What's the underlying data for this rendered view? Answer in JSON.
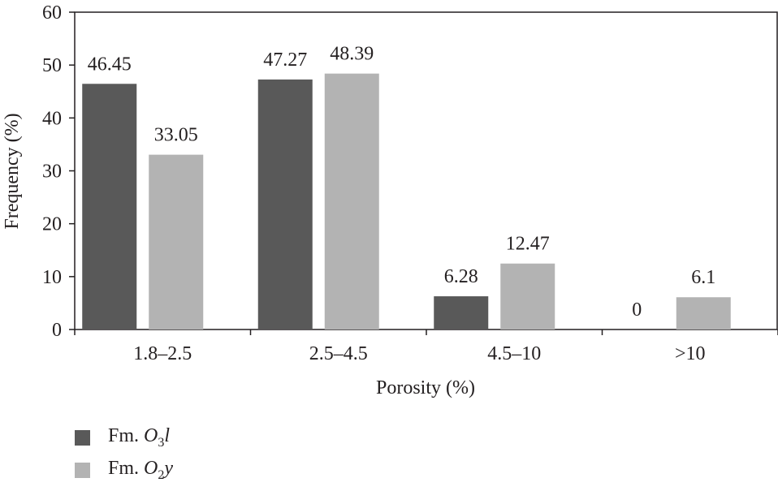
{
  "chart_data": {
    "type": "bar",
    "categories": [
      "1.8–2.5",
      "2.5–4.5",
      "4.5–10",
      ">10"
    ],
    "series": [
      {
        "name": "Fm. O3l",
        "values": [
          46.45,
          47.27,
          6.28,
          0
        ],
        "value_labels": [
          "46.45",
          "47.27",
          "6.28",
          "0"
        ],
        "color": "#595959"
      },
      {
        "name": "Fm. O2y",
        "values": [
          33.05,
          48.39,
          12.47,
          6.1
        ],
        "value_labels": [
          "33.05",
          "48.39",
          "12.47",
          "6.1"
        ],
        "color": "#b3b3b3"
      }
    ],
    "xlabel": "Porosity (%)",
    "ylabel": "Frequency (%)",
    "ylim": [
      0,
      60
    ],
    "yticks": [
      0,
      10,
      20,
      30,
      40,
      50,
      60
    ],
    "grid": false,
    "legend_position": "bottom-left"
  },
  "legend": [
    {
      "prefix": "Fm. ",
      "main": "O",
      "sub": "3",
      "suffix": "l"
    },
    {
      "prefix": "Fm. ",
      "main": "O",
      "sub": "2",
      "suffix": "y"
    }
  ]
}
